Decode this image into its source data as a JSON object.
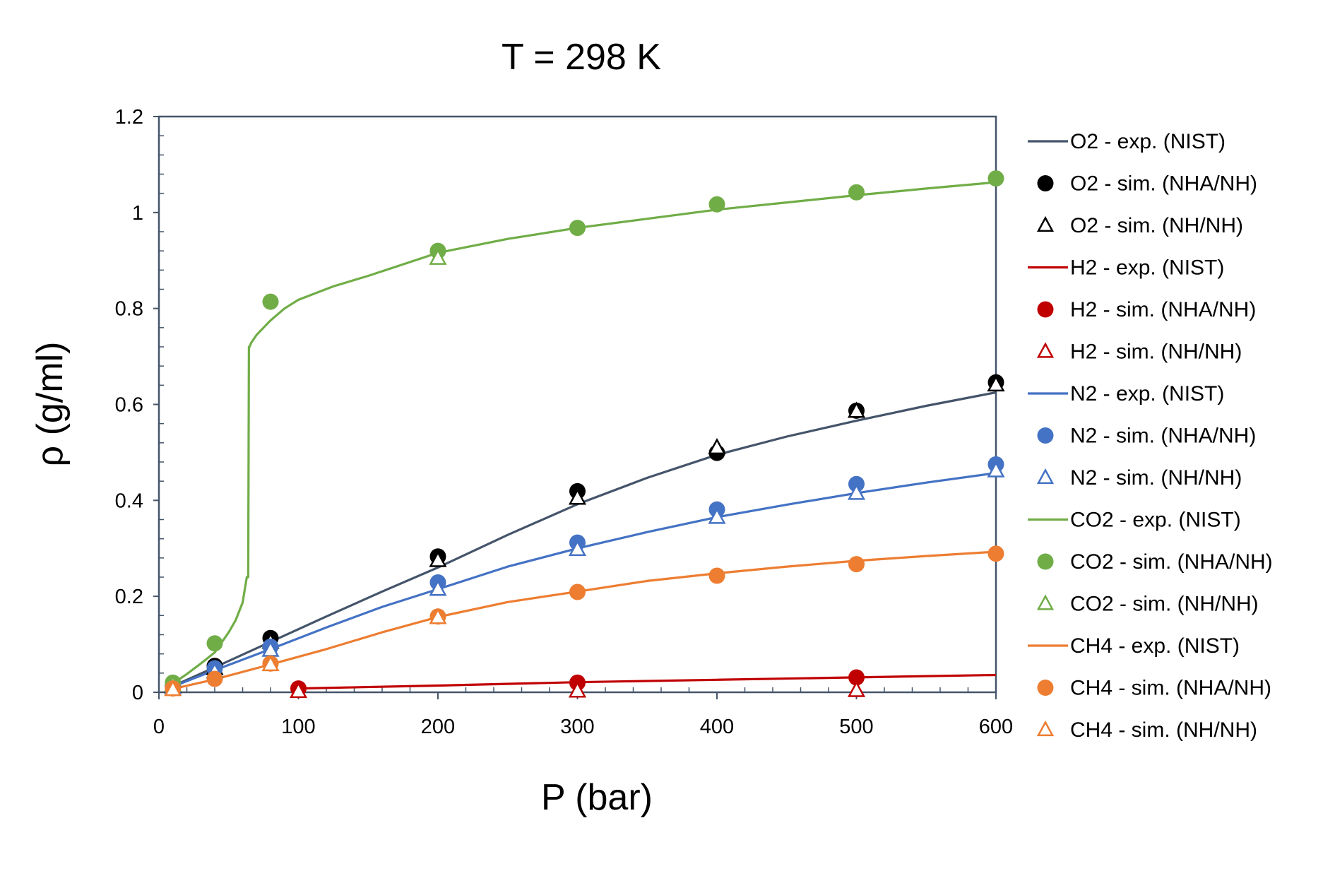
{
  "chart_data": {
    "type": "line",
    "title": "T = 298 K",
    "xlabel": "P (bar)",
    "ylabel": "ρ (g/ml)",
    "xlim": [
      0,
      600
    ],
    "ylim": [
      0,
      1.2
    ],
    "x_ticks": [
      "0",
      "100",
      "200",
      "300",
      "400",
      "500",
      "600"
    ],
    "y_ticks": [
      "0",
      "0.2",
      "0.4",
      "0.6",
      "0.8",
      "1",
      "1.2"
    ],
    "grid": false,
    "legend_position": "right",
    "series": [
      {
        "name": "O2 - exp. (NIST)",
        "kind": "line",
        "color": "#44546A",
        "x": [
          10,
          40,
          80,
          120,
          160,
          200,
          250,
          300,
          350,
          400,
          450,
          500,
          550,
          600
        ],
        "y": [
          0.013,
          0.052,
          0.105,
          0.158,
          0.21,
          0.26,
          0.328,
          0.392,
          0.447,
          0.495,
          0.533,
          0.566,
          0.597,
          0.625
        ]
      },
      {
        "name": "O2 - sim. (NHA/NH)",
        "kind": "circle",
        "color": "#000000",
        "x": [
          10,
          40,
          80,
          200,
          300,
          400,
          500,
          600
        ],
        "y": [
          0.013,
          0.055,
          0.113,
          0.283,
          0.419,
          0.499,
          0.587,
          0.646
        ]
      },
      {
        "name": "O2 - sim. (NH/NH)",
        "kind": "triangle",
        "color": "#000000",
        "x": [
          10,
          40,
          80,
          200,
          300,
          400,
          500,
          600
        ],
        "y": [
          0.013,
          0.05,
          0.105,
          0.275,
          0.405,
          0.51,
          0.586,
          0.641
        ]
      },
      {
        "name": "H2 - exp. (NIST)",
        "kind": "line",
        "color": "#C00000",
        "x": [
          100,
          200,
          300,
          400,
          500,
          600
        ],
        "y": [
          0.008,
          0.014,
          0.021,
          0.026,
          0.031,
          0.036
        ]
      },
      {
        "name": "H2 - sim. (NHA/NH)",
        "kind": "circle",
        "color": "#C00000",
        "x": [
          100,
          300,
          500
        ],
        "y": [
          0.008,
          0.02,
          0.031
        ]
      },
      {
        "name": "H2 - sim. (NH/NH)",
        "kind": "triangle",
        "color": "#C00000",
        "x": [
          100,
          300,
          500
        ],
        "y": [
          0.002,
          0.003,
          0.004
        ]
      },
      {
        "name": "N2 - exp. (NIST)",
        "kind": "line",
        "color": "#4472C4",
        "x": [
          10,
          40,
          80,
          120,
          160,
          200,
          250,
          300,
          350,
          400,
          450,
          500,
          550,
          600
        ],
        "y": [
          0.012,
          0.046,
          0.09,
          0.135,
          0.178,
          0.215,
          0.262,
          0.3,
          0.334,
          0.365,
          0.391,
          0.415,
          0.437,
          0.457
        ]
      },
      {
        "name": "N2 - sim. (NHA/NH)",
        "kind": "circle",
        "color": "#4472C4",
        "x": [
          10,
          40,
          80,
          200,
          300,
          400,
          500,
          600
        ],
        "y": [
          0.012,
          0.05,
          0.095,
          0.229,
          0.312,
          0.381,
          0.434,
          0.475
        ]
      },
      {
        "name": "N2 - sim. (NH/NH)",
        "kind": "triangle",
        "color": "#4472C4",
        "x": [
          10,
          40,
          80,
          200,
          300,
          400,
          500,
          600
        ],
        "y": [
          0.01,
          0.043,
          0.088,
          0.215,
          0.298,
          0.365,
          0.415,
          0.462
        ]
      },
      {
        "name": "CO2 - exp. (NIST)",
        "kind": "line",
        "color": "#70AD47",
        "x": [
          10,
          20,
          30,
          40,
          50,
          55,
          60,
          63,
          64,
          64.5,
          65,
          66,
          70,
          75,
          80,
          90,
          100,
          125,
          150,
          200,
          250,
          300,
          350,
          400,
          450,
          500,
          550,
          600
        ],
        "y": [
          0.018,
          0.038,
          0.06,
          0.083,
          0.125,
          0.15,
          0.187,
          0.24,
          0.24,
          0.72,
          0.72,
          0.728,
          0.745,
          0.76,
          0.775,
          0.8,
          0.818,
          0.846,
          0.868,
          0.916,
          0.945,
          0.968,
          0.987,
          1.006,
          1.021,
          1.036,
          1.05,
          1.063
        ]
      },
      {
        "name": "CO2 - sim. (NHA/NH)",
        "kind": "circle",
        "color": "#70AD47",
        "x": [
          10,
          40,
          80,
          200,
          300,
          400,
          500,
          600
        ],
        "y": [
          0.02,
          0.102,
          0.814,
          0.92,
          0.968,
          1.017,
          1.042,
          1.071
        ]
      },
      {
        "name": "CO2 - sim. (NH/NH)",
        "kind": "triangle",
        "color": "#70AD47",
        "x": [
          10,
          200
        ],
        "y": [
          0.015,
          0.905
        ]
      },
      {
        "name": "CH4 - exp. (NIST)",
        "kind": "line",
        "color": "#ED7D31",
        "x": [
          10,
          40,
          80,
          120,
          160,
          200,
          250,
          300,
          350,
          400,
          450,
          500,
          550,
          600
        ],
        "y": [
          0.007,
          0.027,
          0.058,
          0.09,
          0.125,
          0.157,
          0.188,
          0.21,
          0.232,
          0.248,
          0.262,
          0.274,
          0.284,
          0.293
        ]
      },
      {
        "name": "CH4 - sim. (NHA/NH)",
        "kind": "circle",
        "color": "#ED7D31",
        "x": [
          10,
          40,
          80,
          200,
          300,
          400,
          500,
          600
        ],
        "y": [
          0.008,
          0.028,
          0.06,
          0.158,
          0.209,
          0.243,
          0.267,
          0.289
        ]
      },
      {
        "name": "CH4 - sim. (NH/NH)",
        "kind": "triangle",
        "color": "#ED7D31",
        "x": [
          10,
          80,
          200
        ],
        "y": [
          0.006,
          0.058,
          0.156
        ]
      }
    ]
  }
}
